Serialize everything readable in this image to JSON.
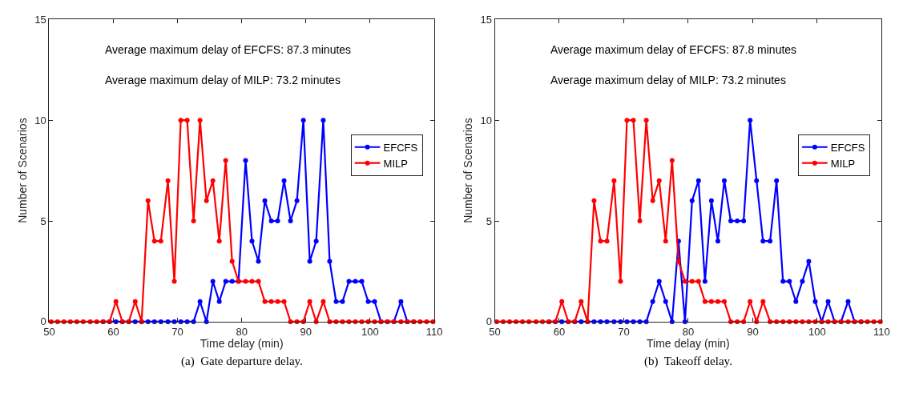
{
  "chart_data": [
    {
      "type": "line",
      "title": "(a)  Gate departure delay.",
      "xlabel": "Time delay (min)",
      "ylabel": "Number of Scenarios",
      "annotations": [
        "Average maximum delay of EFCFS: 87.3 minutes",
        "Average maximum delay of MILP: 73.2 minutes"
      ],
      "x": [
        50.3,
        51.3,
        52.3,
        53.3,
        54.3,
        55.3,
        56.4,
        57.4,
        58.4,
        59.4,
        60.4,
        61.4,
        62.4,
        63.4,
        64.4,
        65.4,
        66.4,
        67.4,
        68.5,
        69.5,
        70.5,
        71.5,
        72.5,
        73.5,
        74.5,
        75.5,
        76.5,
        77.5,
        78.5,
        79.5,
        80.6,
        81.6,
        82.6,
        83.6,
        84.6,
        85.6,
        86.6,
        87.6,
        88.6,
        89.6,
        90.6,
        91.6,
        92.7,
        93.7,
        94.7,
        95.7,
        96.7,
        97.7,
        98.7,
        99.7,
        100.7,
        101.7,
        102.7,
        103.7,
        104.8,
        105.8,
        106.8,
        107.8,
        108.8,
        109.8
      ],
      "series": [
        {
          "name": "EFCFS",
          "color": "#0000ff",
          "values": [
            null,
            null,
            null,
            null,
            null,
            null,
            null,
            null,
            0,
            0,
            0,
            0,
            0,
            0,
            0,
            0,
            0,
            0,
            0,
            0,
            0,
            0,
            0,
            1,
            0,
            2,
            1,
            2,
            2,
            2,
            8,
            4,
            3,
            6,
            5,
            5,
            7,
            5,
            6,
            10,
            3,
            4,
            10,
            3,
            1,
            1,
            2,
            2,
            2,
            1,
            1,
            0,
            0,
            0,
            1,
            0,
            0,
            null,
            null,
            null
          ]
        },
        {
          "name": "MILP",
          "color": "#ff0000",
          "values": [
            0,
            0,
            0,
            0,
            0,
            0,
            0,
            0,
            0,
            0,
            1,
            0,
            0,
            1,
            0,
            6,
            4,
            4,
            7,
            2,
            10,
            10,
            5,
            10,
            6,
            7,
            4,
            8,
            3,
            2,
            2,
            2,
            2,
            1,
            1,
            1,
            1,
            0,
            0,
            0,
            1,
            0,
            1,
            0,
            0,
            0,
            0,
            0,
            0,
            0,
            0,
            0,
            0,
            0,
            0,
            0,
            0,
            0,
            0,
            0
          ]
        }
      ],
      "xlim": [
        50,
        110
      ],
      "xticks": [
        50,
        60,
        70,
        80,
        90,
        100,
        110
      ],
      "ylim": [
        0,
        15
      ],
      "yticks": [
        0,
        5,
        10,
        15
      ],
      "legend": "right",
      "marker": "circle",
      "line_style": "solid"
    },
    {
      "type": "line",
      "title": "(b)  Takeoff delay.",
      "xlabel": "Time delay (min)",
      "ylabel": "Number of Scenarios",
      "annotations": [
        "Average maximum delay of EFCFS: 87.8 minutes",
        "Average maximum delay of MILP: 73.2 minutes"
      ],
      "x": [
        50.3,
        51.3,
        52.3,
        53.3,
        54.3,
        55.3,
        56.4,
        57.4,
        58.4,
        59.4,
        60.4,
        61.4,
        62.4,
        63.4,
        64.4,
        65.4,
        66.4,
        67.4,
        68.5,
        69.5,
        70.5,
        71.5,
        72.5,
        73.5,
        74.5,
        75.5,
        76.5,
        77.5,
        78.5,
        79.5,
        80.6,
        81.6,
        82.6,
        83.6,
        84.6,
        85.6,
        86.6,
        87.6,
        88.6,
        89.6,
        90.6,
        91.6,
        92.7,
        93.7,
        94.7,
        95.7,
        96.7,
        97.7,
        98.7,
        99.7,
        100.7,
        101.7,
        102.7,
        103.7,
        104.8,
        105.8,
        106.8,
        107.8,
        108.8,
        109.8
      ],
      "series": [
        {
          "name": "EFCFS",
          "color": "#0000ff",
          "values": [
            null,
            null,
            null,
            null,
            null,
            null,
            null,
            null,
            0,
            0,
            0,
            0,
            0,
            0,
            0,
            0,
            0,
            0,
            0,
            0,
            0,
            0,
            0,
            0,
            1,
            2,
            1,
            0,
            4,
            0,
            6,
            7,
            2,
            6,
            4,
            7,
            5,
            5,
            5,
            10,
            7,
            4,
            4,
            7,
            2,
            2,
            1,
            2,
            3,
            1,
            0,
            1,
            0,
            0,
            1,
            0,
            0,
            null,
            null,
            null
          ]
        },
        {
          "name": "MILP",
          "color": "#ff0000",
          "values": [
            0,
            0,
            0,
            0,
            0,
            0,
            0,
            0,
            0,
            0,
            1,
            0,
            0,
            1,
            0,
            6,
            4,
            4,
            7,
            2,
            10,
            10,
            5,
            10,
            6,
            7,
            4,
            8,
            3,
            2,
            2,
            2,
            1,
            1,
            1,
            1,
            0,
            0,
            0,
            1,
            0,
            1,
            0,
            0,
            0,
            0,
            0,
            0,
            0,
            0,
            0,
            0,
            0,
            0,
            0,
            0,
            0,
            0,
            0,
            0
          ]
        }
      ],
      "xlim": [
        50,
        110
      ],
      "xticks": [
        50,
        60,
        70,
        80,
        90,
        100,
        110
      ],
      "ylim": [
        0,
        15
      ],
      "yticks": [
        0,
        5,
        10,
        15
      ],
      "legend": "right",
      "marker": "circle",
      "line_style": "solid"
    }
  ]
}
